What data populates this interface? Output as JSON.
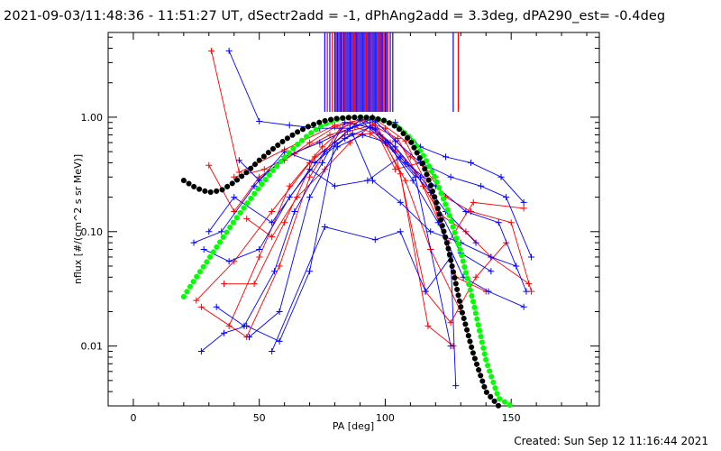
{
  "title": "2021-09-03/11:48:36 - 11:51:27 UT, dSectr2add = -1, dPhAng2add = 3.3deg, dPA290_est= -0.4deg",
  "footer": "Created: Sun Sep 12 11:16:44 2021",
  "colors": {
    "red": "#ff0000",
    "blue": "#0000ff",
    "purple": "#8000a0",
    "green": "#00ff00",
    "black": "#000000"
  },
  "chart_data": {
    "type": "line",
    "xlabel": "PA [deg]",
    "ylabel": "nflux [#/(cm^2 s sr MeV)]",
    "xlim": [
      -10,
      185
    ],
    "ylim": [
      0.003,
      5.5
    ],
    "yscale": "log",
    "x_ticks": [
      0,
      50,
      100,
      150
    ],
    "x_tick_labels": [
      "0",
      "50",
      "100",
      "150"
    ],
    "y_ticks": [
      0.01,
      0.1,
      1.0
    ],
    "y_tick_labels": [
      "0.01",
      "0.10",
      "1.00"
    ],
    "grid": false,
    "markers": {
      "x": [
        76,
        77,
        78,
        79,
        80,
        80.5,
        81,
        81.5,
        82,
        82.5,
        83,
        83.5,
        84,
        84.5,
        85,
        85.5,
        86,
        86.5,
        87,
        87.5,
        88,
        88.5,
        89,
        89.5,
        90,
        90.5,
        91,
        91.5,
        92,
        92.5,
        93,
        93.5,
        94,
        94.5,
        95,
        95.5,
        96,
        96.5,
        97,
        97.5,
        98,
        98.5,
        99,
        99.5,
        100,
        100.5,
        101,
        102,
        103,
        127,
        129
      ],
      "colors": [
        "blue",
        "red",
        "blue",
        "red",
        "blue",
        "purple",
        "blue",
        "red",
        "blue",
        "blue",
        "red",
        "blue",
        "purple",
        "blue",
        "red",
        "blue",
        "blue",
        "purple",
        "blue",
        "red",
        "blue",
        "blue",
        "purple",
        "blue",
        "red",
        "blue",
        "blue",
        "purple",
        "blue",
        "red",
        "blue",
        "blue",
        "purple",
        "blue",
        "red",
        "blue",
        "blue",
        "purple",
        "blue",
        "red",
        "blue",
        "blue",
        "purple",
        "red",
        "blue",
        "blue",
        "red",
        "blue",
        "blue",
        "blue",
        "red"
      ]
    },
    "series": [
      {
        "color": "green",
        "style": "thick dotted fit",
        "x": [
          20,
          25,
          30,
          35,
          40,
          45,
          50,
          55,
          60,
          65,
          70,
          75,
          80,
          85,
          90,
          92,
          95,
          100,
          105,
          110,
          115,
          120,
          125,
          130,
          135,
          140,
          145,
          150
        ],
        "y": [
          0.027,
          0.04,
          0.058,
          0.085,
          0.123,
          0.175,
          0.245,
          0.335,
          0.445,
          0.575,
          0.715,
          0.85,
          0.95,
          0.995,
          1.0,
          0.998,
          0.985,
          0.93,
          0.82,
          0.66,
          0.47,
          0.29,
          0.15,
          0.066,
          0.024,
          0.0075,
          0.0035,
          0.003
        ]
      },
      {
        "color": "black",
        "style": "thick dotted fit",
        "x": [
          20,
          25,
          30,
          35,
          40,
          45,
          50,
          55,
          60,
          65,
          70,
          75,
          80,
          85,
          90,
          95,
          100,
          105,
          110,
          115,
          120,
          125,
          130,
          135,
          140,
          145
        ],
        "y": [
          0.28,
          0.24,
          0.22,
          0.23,
          0.27,
          0.33,
          0.42,
          0.52,
          0.63,
          0.74,
          0.84,
          0.92,
          0.97,
          0.99,
          1.0,
          0.99,
          0.93,
          0.81,
          0.62,
          0.39,
          0.19,
          0.072,
          0.022,
          0.0085,
          0.004,
          0.003
        ]
      },
      {
        "color": "red",
        "x": [
          30,
          40,
          50,
          60,
          70,
          80,
          90,
          100,
          110,
          120
        ],
        "y": [
          0.38,
          0.15,
          0.3,
          0.42,
          0.6,
          0.82,
          0.95,
          0.8,
          0.45,
          0.3
        ]
      },
      {
        "color": "red",
        "x": [
          31,
          42,
          60,
          80,
          95,
          108,
          118,
          128,
          140
        ],
        "y": [
          3.8,
          0.33,
          0.52,
          0.85,
          1.0,
          0.62,
          0.22,
          0.04,
          0.03
        ]
      },
      {
        "color": "red",
        "x": [
          25,
          40,
          55,
          70,
          85,
          95,
          105,
          115,
          125,
          135,
          155
        ],
        "y": [
          0.025,
          0.055,
          0.15,
          0.4,
          0.75,
          0.85,
          0.65,
          0.25,
          0.08,
          0.18,
          0.16
        ]
      },
      {
        "color": "red",
        "x": [
          27,
          45,
          58,
          70,
          82,
          92,
          102,
          112,
          122,
          132,
          142,
          157
        ],
        "y": [
          0.022,
          0.012,
          0.05,
          0.3,
          0.8,
          0.95,
          0.6,
          0.33,
          0.14,
          0.1,
          0.06,
          0.035
        ]
      },
      {
        "color": "red",
        "x": [
          38,
          50,
          62,
          75,
          86,
          96,
          104,
          114,
          124,
          134,
          150,
          158
        ],
        "y": [
          0.015,
          0.06,
          0.25,
          0.55,
          0.9,
          0.78,
          0.35,
          0.4,
          0.2,
          0.15,
          0.12,
          0.03
        ]
      },
      {
        "color": "red",
        "x": [
          40,
          52,
          64,
          78,
          88,
          98,
          108,
          118,
          130
        ],
        "y": [
          0.3,
          0.35,
          0.48,
          0.7,
          0.82,
          0.7,
          0.28,
          0.07,
          0.02
        ]
      },
      {
        "color": "red",
        "x": [
          36,
          48,
          60,
          72,
          84,
          94,
          104,
          116,
          126,
          136,
          148
        ],
        "y": [
          0.035,
          0.035,
          0.12,
          0.45,
          0.7,
          0.72,
          0.5,
          0.03,
          0.016,
          0.04,
          0.08
        ]
      },
      {
        "color": "red",
        "x": [
          45,
          55,
          65,
          76,
          86,
          96,
          106,
          117,
          127
        ],
        "y": [
          0.13,
          0.09,
          0.2,
          0.35,
          0.6,
          0.9,
          0.32,
          0.015,
          0.01
        ]
      },
      {
        "color": "blue",
        "x": [
          38,
          50,
          62,
          74,
          86,
          94,
          104,
          114,
          124,
          134,
          146,
          155
        ],
        "y": [
          3.8,
          0.92,
          0.85,
          0.8,
          0.8,
          0.95,
          0.9,
          0.55,
          0.45,
          0.4,
          0.3,
          0.18
        ]
      },
      {
        "color": "blue",
        "x": [
          42,
          50,
          60,
          74,
          86,
          96,
          104,
          114,
          126,
          138,
          148,
          158
        ],
        "y": [
          0.42,
          0.28,
          0.45,
          0.6,
          0.8,
          0.93,
          0.62,
          0.4,
          0.3,
          0.25,
          0.2,
          0.06
        ]
      },
      {
        "color": "blue",
        "x": [
          28,
          38,
          50,
          62,
          76,
          87,
          95,
          106,
          118,
          130,
          142,
          152
        ],
        "y": [
          0.07,
          0.055,
          0.07,
          0.2,
          0.5,
          0.72,
          0.28,
          0.18,
          0.1,
          0.08,
          0.06,
          0.05
        ]
      },
      {
        "color": "blue",
        "x": [
          33,
          44,
          56,
          64,
          75,
          84,
          96,
          108,
          120,
          132,
          145,
          156
        ],
        "y": [
          0.022,
          0.015,
          0.045,
          0.15,
          0.4,
          0.9,
          0.8,
          0.4,
          0.25,
          0.15,
          0.12,
          0.03
        ]
      },
      {
        "color": "blue",
        "x": [
          27,
          36,
          45,
          58,
          70,
          80,
          90,
          100,
          112,
          126
        ],
        "y": [
          0.009,
          0.013,
          0.015,
          0.011,
          0.045,
          0.6,
          0.95,
          0.6,
          0.3,
          0.01
        ]
      },
      {
        "color": "blue",
        "x": [
          55,
          76,
          96,
          106,
          116,
          126,
          128
        ],
        "y": [
          0.009,
          0.11,
          0.085,
          0.1,
          0.03,
          0.06,
          0.0045
        ]
      },
      {
        "color": "blue",
        "x": [
          30,
          40,
          55,
          70,
          80,
          93,
          106,
          118,
          130,
          142
        ],
        "y": [
          0.1,
          0.2,
          0.12,
          0.35,
          0.25,
          0.28,
          0.45,
          0.22,
          0.065,
          0.045
        ]
      },
      {
        "color": "blue",
        "x": [
          46,
          58,
          70,
          81,
          91,
          101,
          111,
          121,
          131,
          141,
          155
        ],
        "y": [
          0.012,
          0.02,
          0.2,
          0.55,
          0.7,
          0.6,
          0.28,
          0.12,
          0.04,
          0.03,
          0.022
        ]
      },
      {
        "color": "blue",
        "x": [
          24,
          35,
          48,
          60,
          72,
          84,
          94,
          104,
          114,
          124,
          136
        ],
        "y": [
          0.08,
          0.1,
          0.25,
          0.5,
          0.4,
          0.65,
          0.82,
          0.55,
          0.3,
          0.15,
          0.08
        ]
      }
    ]
  }
}
